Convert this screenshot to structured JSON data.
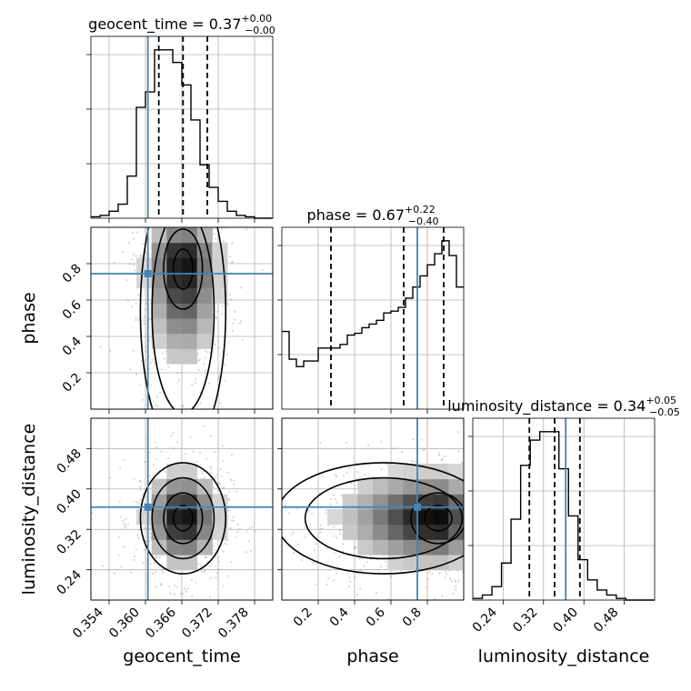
{
  "chart_data": {
    "type": "corner",
    "truth_color": "#4682b4",
    "parameters": [
      {
        "name": "geocent_time",
        "axis_label": "geocent_time",
        "range": [
          0.351,
          0.381
        ],
        "ticks": [
          0.354,
          0.36,
          0.366,
          0.372,
          0.378
        ],
        "tick_labels": [
          "0.354",
          "0.360",
          "0.366",
          "0.372",
          "0.378"
        ],
        "truth": 0.3604,
        "quantiles": [
          0.3622,
          0.3662,
          0.3702
        ],
        "title_main": "geocent_time = 0.37",
        "title_sup": "+0.00",
        "title_sub": "−0.00",
        "hist_counts": [
          1,
          2,
          5,
          10,
          30,
          79,
          90,
          120,
          120,
          111,
          95,
          70,
          38,
          22,
          12,
          5,
          2,
          1,
          0,
          0
        ]
      },
      {
        "name": "phase",
        "axis_label": "phase",
        "range": [
          0.0,
          1.0
        ],
        "ticks": [
          0.2,
          0.4,
          0.6,
          0.8
        ],
        "tick_labels": [
          "0.2",
          "0.4",
          "0.6",
          "0.8"
        ],
        "truth": 0.745,
        "quantiles": [
          0.27,
          0.67,
          0.89
        ],
        "title_main": "phase = 0.67",
        "title_sup": "+0.22",
        "title_sub": "−0.40",
        "hist_counts": [
          42,
          27,
          23,
          26,
          26,
          33,
          33,
          33,
          35,
          40,
          41,
          44,
          46,
          48,
          52,
          53,
          55,
          60,
          66,
          72,
          78,
          84,
          91,
          83,
          66
        ]
      },
      {
        "name": "luminosity_distance",
        "axis_label": "luminosity_distance",
        "range": [
          0.18,
          0.54
        ],
        "ticks": [
          0.24,
          0.32,
          0.4,
          0.48
        ],
        "tick_labels": [
          "0.24",
          "0.32",
          "0.40",
          "0.48"
        ],
        "truth": 0.364,
        "quantiles": [
          0.292,
          0.342,
          0.392
        ],
        "title_main": "luminosity_distance = 0.34",
        "title_sup": "+0.05",
        "title_sub": "−0.05",
        "hist_counts": [
          1,
          3,
          8,
          22,
          48,
          80,
          95,
          100,
          100,
          78,
          50,
          24,
          12,
          6,
          3,
          1,
          0,
          0,
          0
        ]
      }
    ],
    "pairs": [
      {
        "x": "geocent_time",
        "y": "phase",
        "center": [
          0.3662,
          0.82
        ],
        "spread": [
          0.0032,
          0.42
        ],
        "corr": 0.0,
        "skew_y": "high"
      },
      {
        "x": "geocent_time",
        "y": "luminosity_distance",
        "center": [
          0.3662,
          0.342
        ],
        "spread": [
          0.0032,
          0.05
        ],
        "corr": 0.0
      },
      {
        "x": "phase",
        "y": "luminosity_distance",
        "center": [
          0.86,
          0.342
        ],
        "spread": [
          0.22,
          0.05
        ],
        "corr": 0.0,
        "skew_x": "high"
      }
    ],
    "grid": true
  }
}
